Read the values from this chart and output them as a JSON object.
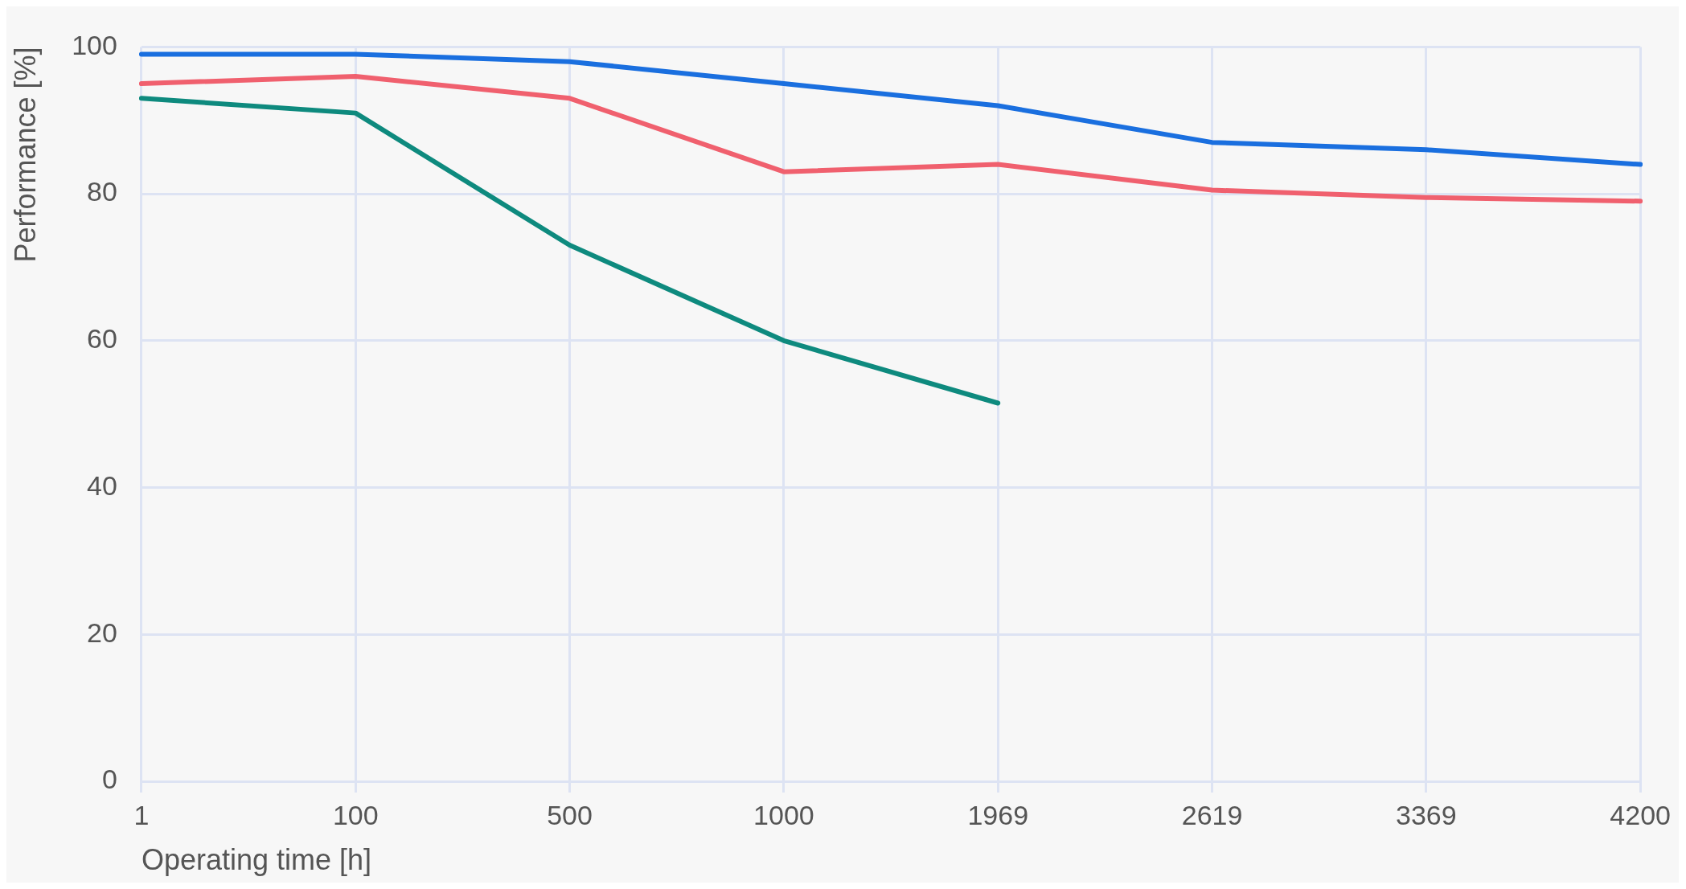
{
  "chart_data": {
    "type": "line",
    "xlabel": "Operating time [h]",
    "ylabel": "Performance [%]",
    "categories": [
      "1",
      "100",
      "500",
      "1000",
      "1969",
      "2619",
      "3369",
      "4200"
    ],
    "series": [
      {
        "color": "#1a6fdf",
        "values": [
          99,
          99,
          98,
          95,
          92,
          87,
          86,
          84
        ]
      },
      {
        "color": "#f0606e",
        "values": [
          95,
          96,
          93,
          83,
          84,
          80.5,
          79.5,
          79
        ]
      },
      {
        "color": "#0e8a7e",
        "values": [
          93,
          91,
          73,
          60,
          51.5,
          null,
          null,
          null
        ]
      }
    ],
    "ylim": [
      0,
      100
    ],
    "yticks": [
      0,
      20,
      40,
      60,
      80,
      100
    ],
    "grid": true,
    "legend": false,
    "marker": "none",
    "line_style": "solid"
  }
}
